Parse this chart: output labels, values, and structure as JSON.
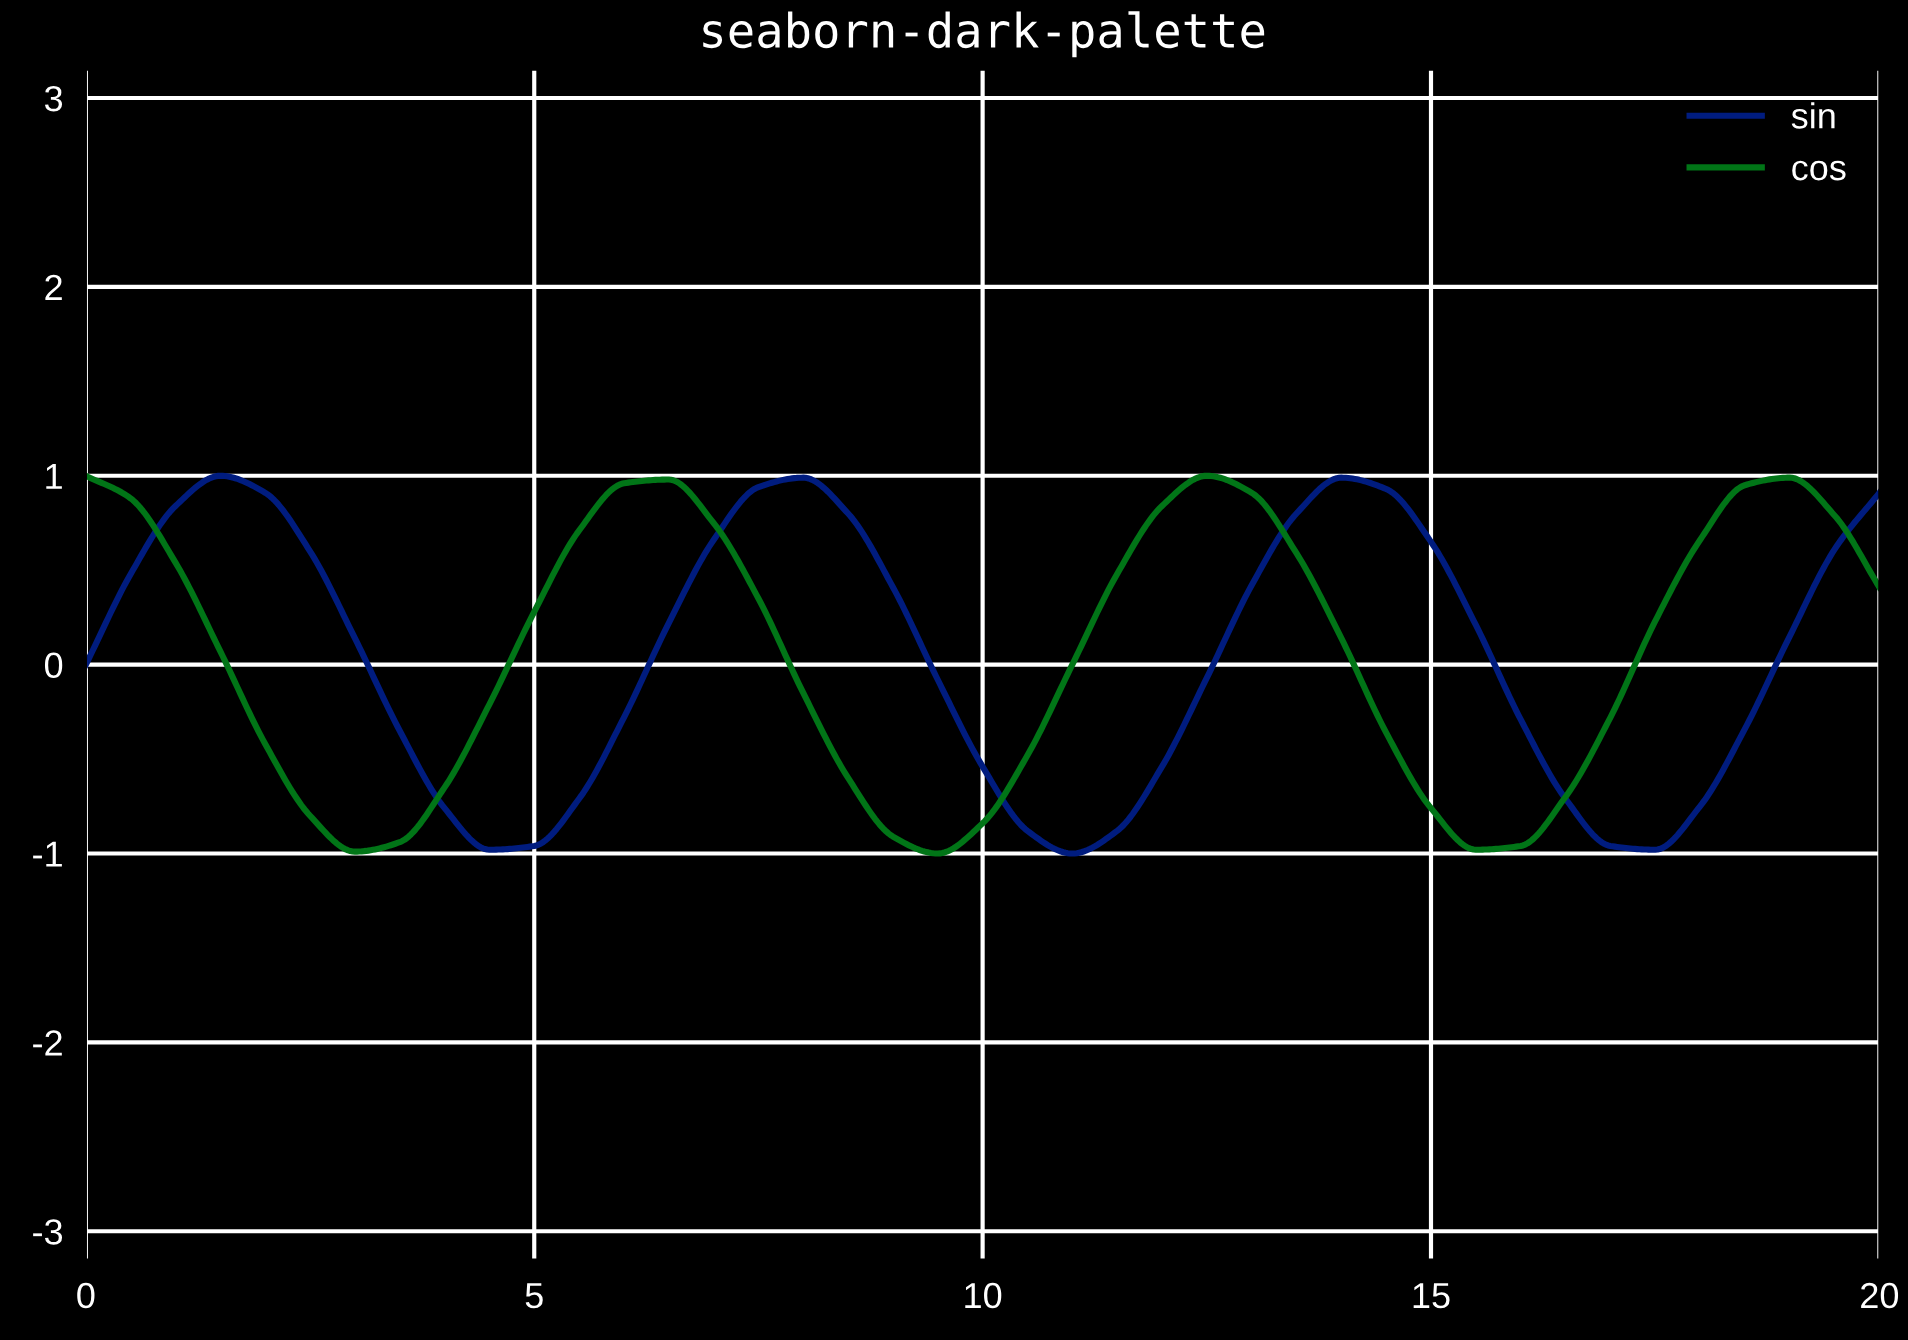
{
  "chart_data": {
    "type": "line",
    "title": "seaborn-dark-palette",
    "x": [
      0,
      0.5,
      1,
      1.5,
      2,
      2.5,
      3,
      3.5,
      4,
      4.5,
      5,
      5.5,
      6,
      6.5,
      7,
      7.5,
      8,
      8.5,
      9,
      9.5,
      10,
      10.5,
      11,
      11.5,
      12,
      12.5,
      13,
      13.5,
      14,
      14.5,
      15,
      15.5,
      16,
      16.5,
      17,
      17.5,
      18,
      18.5,
      19,
      19.5,
      20
    ],
    "series": [
      {
        "name": "sin",
        "color": "#001c7f",
        "values": [
          0,
          0.48,
          0.84,
          1.0,
          0.91,
          0.6,
          0.14,
          -0.35,
          -0.76,
          -0.98,
          -0.96,
          -0.71,
          -0.28,
          0.22,
          0.66,
          0.94,
          0.99,
          0.8,
          0.41,
          -0.08,
          -0.54,
          -0.88,
          -1.0,
          -0.88,
          -0.54,
          -0.07,
          0.42,
          0.8,
          0.99,
          0.93,
          0.65,
          0.21,
          -0.29,
          -0.71,
          -0.96,
          -0.98,
          -0.75,
          -0.34,
          0.15,
          0.61,
          0.91
        ]
      },
      {
        "name": "cos",
        "color": "#017517",
        "values": [
          1,
          0.88,
          0.54,
          0.07,
          -0.42,
          -0.8,
          -0.99,
          -0.94,
          -0.65,
          -0.21,
          0.28,
          0.71,
          0.96,
          0.98,
          0.75,
          0.35,
          -0.15,
          -0.6,
          -0.91,
          -1.0,
          -0.84,
          -0.48,
          0.0,
          0.48,
          0.84,
          1.0,
          0.91,
          0.59,
          0.14,
          -0.36,
          -0.76,
          -0.98,
          -0.96,
          -0.7,
          -0.28,
          0.23,
          0.66,
          0.95,
          0.99,
          0.79,
          0.41
        ]
      }
    ],
    "xlim": [
      0,
      20
    ],
    "xticks": [
      0,
      5,
      10,
      15,
      20
    ],
    "ylim": [
      -3.15,
      3.15
    ],
    "yticks": [
      -3,
      -2,
      -1,
      0,
      1,
      2,
      3
    ],
    "grid": true,
    "legend": "top right",
    "marker": "none",
    "line_style": "solid"
  }
}
